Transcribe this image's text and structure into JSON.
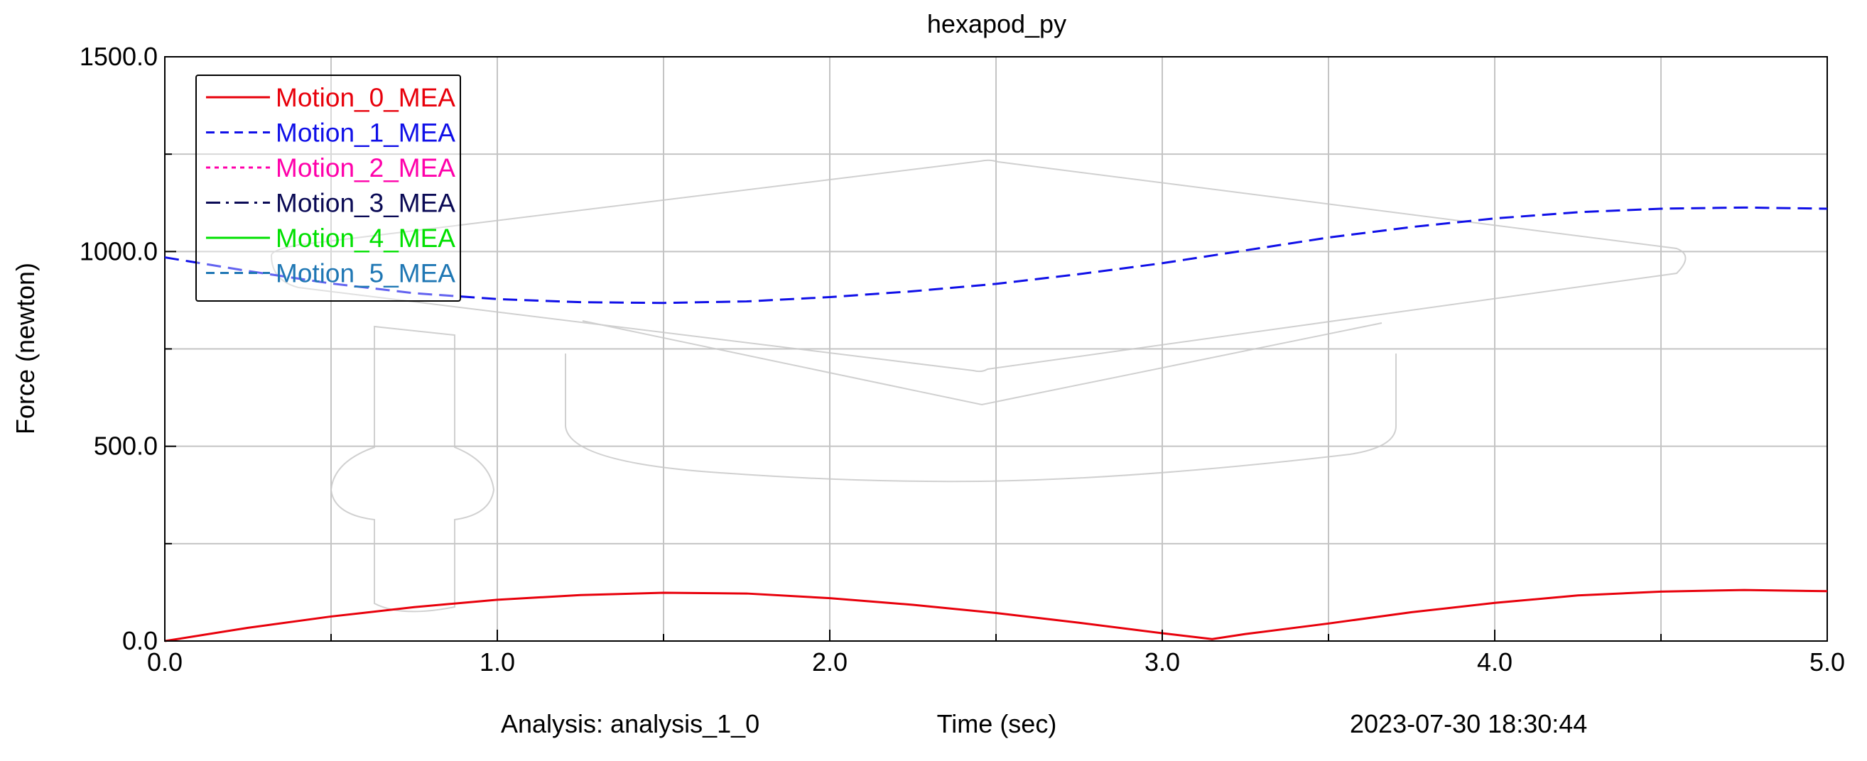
{
  "chart_data": {
    "type": "line",
    "title": "hexapod_py",
    "xlabel": "Time (sec)",
    "ylabel": "Force (newton)",
    "xlim": [
      0.0,
      5.0
    ],
    "ylim": [
      0.0,
      1500.0
    ],
    "x_tick_labels": [
      "0.0",
      "1.0",
      "2.0",
      "3.0",
      "4.0",
      "5.0"
    ],
    "x_tick_values": [
      0,
      1,
      2,
      3,
      4,
      5
    ],
    "y_tick_labels": [
      "0.0",
      "500.0",
      "1000.0",
      "1500.0"
    ],
    "y_tick_values": [
      0,
      500,
      1000,
      1500
    ],
    "grid": true,
    "legend_position": "top-left",
    "footer": {
      "analysis": "Analysis:  analysis_1_0",
      "timestamp": "2023-07-30 18:30:44"
    },
    "series": [
      {
        "name": "Motion_0_MEA",
        "color": "#e8000b",
        "style": "solid",
        "x": [
          0.0,
          0.25,
          0.5,
          0.75,
          1.0,
          1.25,
          1.5,
          1.75,
          2.0,
          2.25,
          2.5,
          2.75,
          3.0,
          3.15,
          3.25,
          3.5,
          3.75,
          4.0,
          4.25,
          4.5,
          4.75,
          5.0
        ],
        "values": [
          0,
          34,
          63,
          87,
          106,
          118,
          124,
          122,
          110,
          93,
          72,
          47,
          20,
          5,
          18,
          45,
          74,
          98,
          117,
          127,
          131,
          128
        ]
      },
      {
        "name": "Motion_1_MEA",
        "color": "#1010e8",
        "style": "dashed",
        "x": [
          0.0,
          0.25,
          0.5,
          0.75,
          1.0,
          1.25,
          1.5,
          1.75,
          2.0,
          2.25,
          2.5,
          2.75,
          3.0,
          3.25,
          3.5,
          3.75,
          4.0,
          4.25,
          4.5,
          4.75,
          5.0
        ],
        "values": [
          985,
          950,
          918,
          893,
          878,
          870,
          868,
          872,
          883,
          898,
          917,
          942,
          970,
          1003,
          1036,
          1063,
          1085,
          1101,
          1110,
          1113,
          1110
        ]
      },
      {
        "name": "Motion_2_MEA",
        "color": "#ff00aa",
        "style": "dotted",
        "x": [],
        "values": []
      },
      {
        "name": "Motion_3_MEA",
        "color": "#0a0a55",
        "style": "dashdot",
        "x": [],
        "values": []
      },
      {
        "name": "Motion_4_MEA",
        "color": "#00e000",
        "style": "solid",
        "x": [],
        "values": []
      },
      {
        "name": "Motion_5_MEA",
        "color": "#1f77b4",
        "style": "dashed",
        "x": [],
        "values": []
      }
    ]
  }
}
